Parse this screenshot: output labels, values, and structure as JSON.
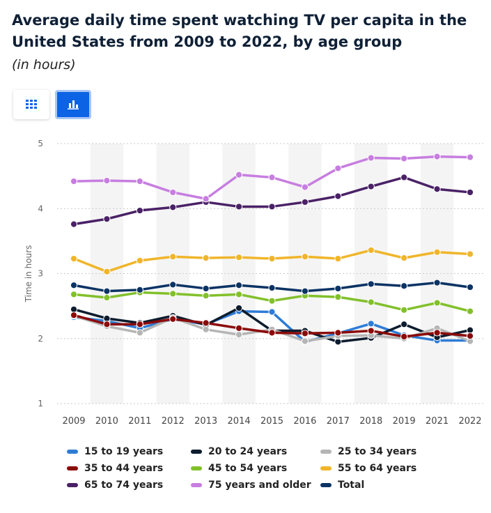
{
  "header": {
    "title": "Average daily time spent watching TV per capita in the United States from 2009 to 2022, by age group",
    "subtitle": "(in hours)"
  },
  "toolbar": {
    "table_view_icon": "grid-icon",
    "chart_view_icon": "bar-chart-icon",
    "active_view": "chart"
  },
  "chart_data": {
    "type": "line",
    "categories": [
      "2009",
      "2010",
      "2011",
      "2012",
      "2013",
      "2014",
      "2015",
      "2016",
      "2017",
      "2018",
      "2019",
      "2021",
      "2022"
    ],
    "ylabel": "Time in hours",
    "xlabel": "",
    "ylim": [
      1,
      5
    ],
    "yticks": [
      1,
      2,
      3,
      4,
      5
    ],
    "grid": true,
    "legend_position": "bottom",
    "series": [
      {
        "name": "15 to 19 years",
        "color": "#2e7cd6",
        "values": [
          2.33,
          2.27,
          2.16,
          2.3,
          2.22,
          2.42,
          2.41,
          1.95,
          2.08,
          2.23,
          2.05,
          1.97,
          1.97
        ]
      },
      {
        "name": "20 to 24 years",
        "color": "#0d1c2e",
        "values": [
          2.45,
          2.31,
          2.24,
          2.35,
          2.21,
          2.47,
          2.12,
          2.12,
          1.95,
          2.01,
          2.22,
          2.02,
          2.13
        ]
      },
      {
        "name": "25 to 34 years",
        "color": "#b5b5b5",
        "values": [
          2.35,
          2.19,
          2.09,
          2.32,
          2.14,
          2.06,
          2.14,
          1.96,
          2.04,
          2.05,
          2.0,
          2.16,
          1.96
        ]
      },
      {
        "name": "35 to 44 years",
        "color": "#8b0a0a",
        "values": [
          2.36,
          2.22,
          2.22,
          2.3,
          2.24,
          2.16,
          2.09,
          2.08,
          2.09,
          2.12,
          2.03,
          2.09,
          2.04
        ]
      },
      {
        "name": "45 to 54 years",
        "color": "#82c02b",
        "values": [
          2.68,
          2.63,
          2.71,
          2.69,
          2.66,
          2.68,
          2.58,
          2.66,
          2.64,
          2.56,
          2.44,
          2.55,
          2.42
        ]
      },
      {
        "name": "55 to 64 years",
        "color": "#f0b52a",
        "values": [
          3.23,
          3.03,
          3.2,
          3.26,
          3.24,
          3.25,
          3.23,
          3.26,
          3.23,
          3.36,
          3.24,
          3.33,
          3.3
        ]
      },
      {
        "name": "65 to 74 years",
        "color": "#4a2166",
        "values": [
          3.76,
          3.84,
          3.97,
          4.02,
          4.1,
          4.03,
          4.03,
          4.1,
          4.19,
          4.34,
          4.48,
          4.3,
          4.25
        ]
      },
      {
        "name": "75 years and older",
        "color": "#c77ee0",
        "values": [
          4.42,
          4.43,
          4.42,
          4.25,
          4.15,
          4.52,
          4.48,
          4.33,
          4.62,
          4.78,
          4.77,
          4.8,
          4.79
        ]
      },
      {
        "name": "Total",
        "color": "#0b3364",
        "values": [
          2.82,
          2.73,
          2.75,
          2.83,
          2.77,
          2.82,
          2.78,
          2.73,
          2.77,
          2.84,
          2.81,
          2.86,
          2.79
        ]
      }
    ]
  }
}
